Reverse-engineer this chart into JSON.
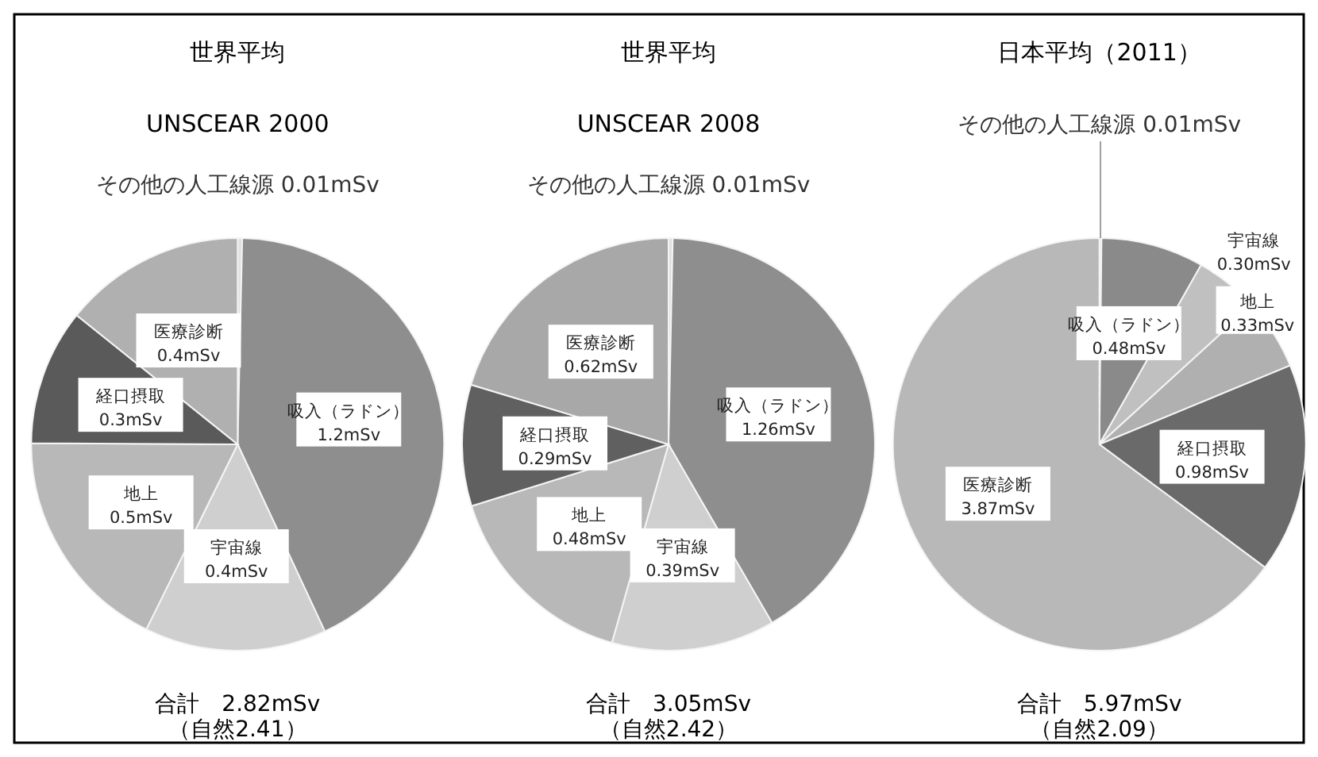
{
  "chart_data": [
    {
      "type": "pie",
      "title": "世界平均",
      "subtitle": "UNSCEAR 2000",
      "categories": [
        "その他の人工線源",
        "吸入（ラドン）",
        "宇宙線",
        "地上",
        "経口摂取",
        "医療診断"
      ],
      "values": [
        0.01,
        1.2,
        0.4,
        0.5,
        0.3,
        0.4
      ],
      "value_labels": [
        "0.01mSv",
        "1.2mSv",
        "0.4mSv",
        "0.5mSv",
        "0.3mSv",
        "0.4mSv"
      ],
      "colors": [
        "#e0e0e0",
        "#8e8e8e",
        "#cfcfcf",
        "#b8b8b8",
        "#5a5a5a",
        "#b0b0b0"
      ],
      "annotations": [
        "合計　2.82mSv",
        "（自然2.41）"
      ]
    },
    {
      "type": "pie",
      "title": "世界平均",
      "subtitle": "UNSCEAR 2008",
      "categories": [
        "その他の人工線源",
        "吸入（ラドン）",
        "宇宙線",
        "地上",
        "経口摂取",
        "医療診断"
      ],
      "values": [
        0.01,
        1.26,
        0.39,
        0.48,
        0.29,
        0.62
      ],
      "value_labels": [
        "0.01mSv",
        "1.26mSv",
        "0.39mSv",
        "0.48mSv",
        "0.29mSv",
        "0.62mSv"
      ],
      "colors": [
        "#e0e0e0",
        "#8e8e8e",
        "#cfcfcf",
        "#b8b8b8",
        "#606060",
        "#a8a8a8"
      ],
      "annotations": [
        "合計　3.05mSv",
        "（自然2.42）"
      ]
    },
    {
      "type": "pie",
      "title": "日本平均（2011）",
      "categories": [
        "その他の人工線源",
        "吸入（ラドン）",
        "宇宙線",
        "地上",
        "経口摂取",
        "医療診断"
      ],
      "values": [
        0.01,
        0.48,
        0.3,
        0.33,
        0.98,
        3.87
      ],
      "value_labels": [
        "0.01mSv",
        "0.48mSv",
        "0.30mSv",
        "0.33mSv",
        "0.98mSv",
        "3.87mSv"
      ],
      "colors": [
        "#e0e0e0",
        "#8a8a8a",
        "#c0c0c0",
        "#b0b0b0",
        "#6a6a6a",
        "#b8b8b8"
      ],
      "annotations": [
        "合計　5.97mSv",
        "（自然2.09）"
      ]
    }
  ]
}
